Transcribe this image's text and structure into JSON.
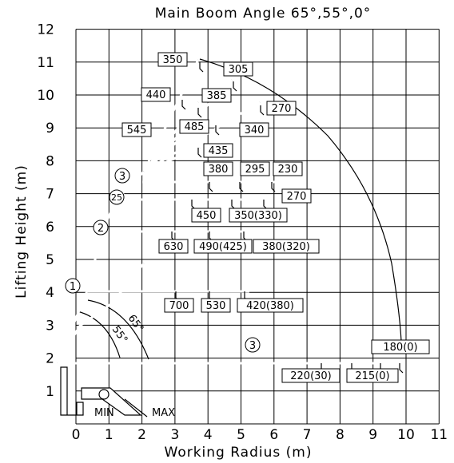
{
  "title": "Main Boom Angle 65°,55°,0°",
  "x_axis": {
    "title": "Working Radius (m)",
    "ticks": [
      "0",
      "1",
      "2",
      "3",
      "4",
      "5",
      "6",
      "7",
      "8",
      "9",
      "10",
      "11"
    ]
  },
  "y_axis": {
    "title": "Lifting Height (m)",
    "ticks": [
      "1",
      "2",
      "3",
      "4",
      "5",
      "6",
      "7",
      "8",
      "9",
      "10",
      "11",
      "12"
    ]
  },
  "boom_angles": {
    "angle_65": "65°",
    "angle_55": "55°"
  },
  "stage_markers": {
    "m1": "1",
    "m2": "2",
    "m25": "25",
    "m3_top": "3",
    "m3_bottom": "3"
  },
  "limits": {
    "min": "MIN",
    "max": "MAX"
  },
  "load_labels": [
    {
      "id": "l350",
      "text": "350"
    },
    {
      "id": "l305",
      "text": "305"
    },
    {
      "id": "l440",
      "text": "440"
    },
    {
      "id": "l385",
      "text": "385"
    },
    {
      "id": "l270a",
      "text": "270"
    },
    {
      "id": "l545",
      "text": "545"
    },
    {
      "id": "l485",
      "text": "485"
    },
    {
      "id": "l340",
      "text": "340"
    },
    {
      "id": "l435",
      "text": "435"
    },
    {
      "id": "l380",
      "text": "380"
    },
    {
      "id": "l295",
      "text": "295"
    },
    {
      "id": "l230",
      "text": "230"
    },
    {
      "id": "l270b",
      "text": "270"
    },
    {
      "id": "l450",
      "text": "450"
    },
    {
      "id": "l350b",
      "text": "350(330)"
    },
    {
      "id": "l630",
      "text": "630"
    },
    {
      "id": "l490",
      "text": "490(425)"
    },
    {
      "id": "l380b",
      "text": "380(320)"
    },
    {
      "id": "l700",
      "text": "700"
    },
    {
      "id": "l530",
      "text": "530"
    },
    {
      "id": "l420",
      "text": "420(380)"
    },
    {
      "id": "l180",
      "text": "180(0)"
    },
    {
      "id": "l220",
      "text": "220(30)"
    },
    {
      "id": "l215",
      "text": "215(0)"
    }
  ]
}
